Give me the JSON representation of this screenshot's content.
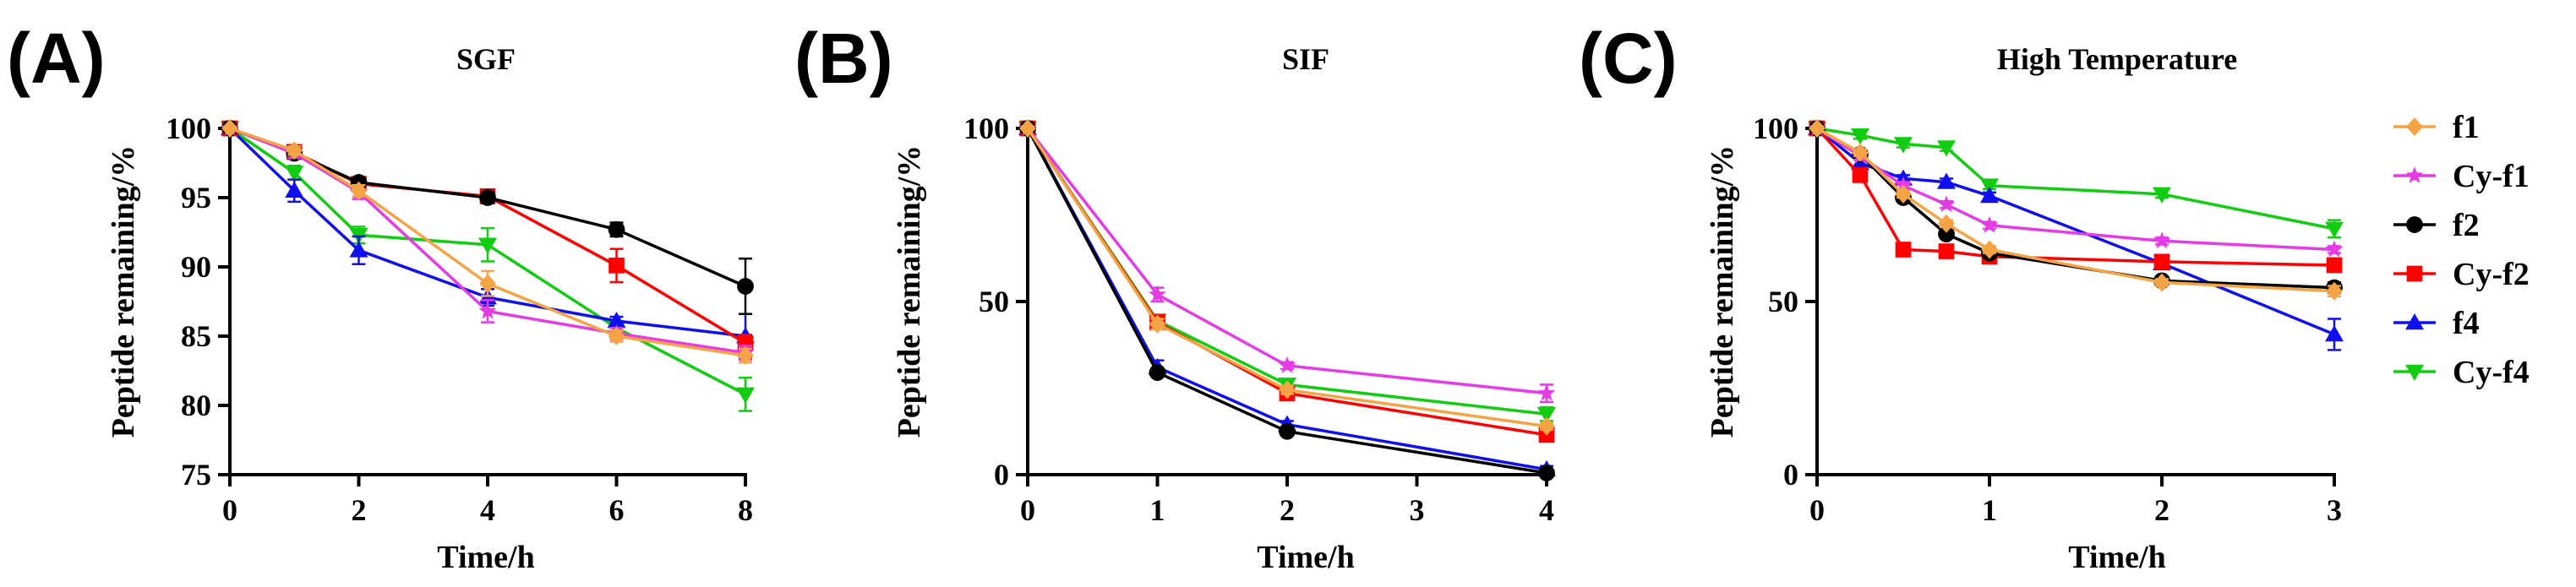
{
  "colors": {
    "f1": "#F5A445",
    "Cy-f1": "#E53BE5",
    "f2": "#000000",
    "Cy-f2": "#FF0000",
    "f4": "#1010EE",
    "Cy-f4": "#11CC11"
  },
  "legend": [
    {
      "name": "f1",
      "marker": "diamond"
    },
    {
      "name": "Cy-f1",
      "marker": "star"
    },
    {
      "name": "f2",
      "marker": "circle"
    },
    {
      "name": "Cy-f2",
      "marker": "square"
    },
    {
      "name": "f4",
      "marker": "triangle-up"
    },
    {
      "name": "Cy-f4",
      "marker": "triangle-down"
    }
  ],
  "chart_data": [
    {
      "panel": "(A)",
      "type": "line",
      "title": "SGF",
      "xlabel": "Time/h",
      "ylabel": "Peptide remaining/%",
      "xlim": [
        0,
        8
      ],
      "ylim": [
        75,
        100
      ],
      "xticks": [
        0,
        2,
        4,
        6,
        8
      ],
      "yticks": [
        75,
        80,
        85,
        90,
        95,
        100
      ],
      "x": [
        0,
        1,
        2,
        4,
        6,
        8
      ],
      "series": [
        {
          "name": "f1",
          "values": [
            100,
            98.4,
            95.5,
            88.8,
            85.0,
            83.6
          ],
          "errors": [
            0,
            0.3,
            0.4,
            0.9,
            0.4,
            0.5
          ]
        },
        {
          "name": "Cy-f1",
          "values": [
            100,
            98.2,
            95.4,
            86.8,
            85.2,
            83.8
          ],
          "errors": [
            0,
            0.3,
            0.5,
            0.8,
            0.4,
            0.5
          ]
        },
        {
          "name": "f2",
          "values": [
            100,
            98.2,
            96.1,
            95.0,
            92.7,
            88.6
          ],
          "errors": [
            0,
            0.3,
            0.3,
            0.4,
            0.5,
            2.0
          ]
        },
        {
          "name": "Cy-f2",
          "values": [
            100,
            98.3,
            96.0,
            95.1,
            90.1,
            84.5
          ],
          "errors": [
            0,
            0.3,
            0.3,
            0.5,
            1.2,
            0.6
          ]
        },
        {
          "name": "f4",
          "values": [
            100,
            95.5,
            91.2,
            87.8,
            86.1,
            85.0
          ],
          "errors": [
            0,
            0.8,
            1.0,
            0.6,
            0.3,
            1.6
          ]
        },
        {
          "name": "Cy-f4",
          "values": [
            100,
            96.8,
            92.3,
            91.6,
            85.6,
            80.8
          ],
          "errors": [
            0,
            0.5,
            0.6,
            1.2,
            0.3,
            1.2
          ]
        }
      ]
    },
    {
      "panel": "(B)",
      "type": "line",
      "title": "SIF",
      "xlabel": "Time/h",
      "ylabel": "Peptide remaining/%",
      "xlim": [
        0,
        4
      ],
      "ylim": [
        0,
        100
      ],
      "xticks": [
        0,
        1,
        2,
        3,
        4
      ],
      "yticks": [
        0,
        50,
        100
      ],
      "x": [
        0,
        1,
        2,
        4
      ],
      "series": [
        {
          "name": "f1",
          "values": [
            100,
            43.5,
            24.5,
            14.0
          ],
          "errors": [
            0,
            1.5,
            1.2,
            1.0
          ]
        },
        {
          "name": "Cy-f1",
          "values": [
            100,
            52.0,
            31.5,
            23.5
          ],
          "errors": [
            0,
            2.0,
            1.0,
            2.5
          ]
        },
        {
          "name": "f2",
          "values": [
            100,
            29.5,
            12.5,
            0.5
          ],
          "errors": [
            0,
            1.0,
            1.0,
            1.0
          ]
        },
        {
          "name": "Cy-f2",
          "values": [
            100,
            44.0,
            23.5,
            11.5
          ],
          "errors": [
            0,
            2.0,
            1.5,
            1.0
          ]
        },
        {
          "name": "f4",
          "values": [
            100,
            31.0,
            14.5,
            1.5
          ],
          "errors": [
            0,
            2.0,
            1.0,
            1.0
          ]
        },
        {
          "name": "Cy-f4",
          "values": [
            100,
            44.5,
            26.0,
            17.5
          ],
          "errors": [
            0,
            1.5,
            1.5,
            2.0
          ]
        }
      ]
    },
    {
      "panel": "(C)",
      "type": "line",
      "title": "High Temperature",
      "xlabel": "Time/h",
      "ylabel": "Peptide remaining/%",
      "xlim": [
        0,
        3
      ],
      "ylim": [
        0,
        100
      ],
      "xticks": [
        0,
        1,
        2,
        3
      ],
      "yticks": [
        0,
        50,
        100
      ],
      "x": [
        0,
        0.25,
        0.5,
        0.75,
        1,
        2,
        3
      ],
      "series": [
        {
          "name": "f1",
          "values": [
            100,
            93.0,
            81.0,
            72.5,
            65.0,
            55.5,
            53.0
          ],
          "errors": [
            0,
            1.0,
            1.0,
            1.0,
            1.0,
            1.0,
            1.5
          ]
        },
        {
          "name": "Cy-f1",
          "values": [
            100,
            92.0,
            83.5,
            78.0,
            72.0,
            67.5,
            65.0
          ],
          "errors": [
            0,
            1.0,
            1.0,
            1.0,
            1.0,
            1.0,
            1.0
          ]
        },
        {
          "name": "f2",
          "values": [
            100,
            92.5,
            80.0,
            69.5,
            64.0,
            56.0,
            54.0
          ],
          "errors": [
            0,
            1.0,
            1.0,
            1.0,
            1.0,
            1.0,
            1.5
          ]
        },
        {
          "name": "Cy-f2",
          "values": [
            100,
            86.5,
            65.0,
            64.5,
            63.0,
            61.5,
            60.5
          ],
          "errors": [
            0,
            1.5,
            1.0,
            1.0,
            2.0,
            1.0,
            1.0
          ]
        },
        {
          "name": "f4",
          "values": [
            100,
            90.0,
            85.5,
            84.5,
            80.5,
            61.0,
            40.5
          ],
          "errors": [
            0,
            1.0,
            1.0,
            1.0,
            1.0,
            1.0,
            4.5
          ]
        },
        {
          "name": "Cy-f4",
          "values": [
            100,
            98.0,
            95.5,
            94.5,
            83.5,
            81.0,
            71.0
          ],
          "errors": [
            0,
            1.0,
            1.0,
            1.0,
            1.0,
            1.0,
            2.5
          ]
        }
      ]
    }
  ]
}
